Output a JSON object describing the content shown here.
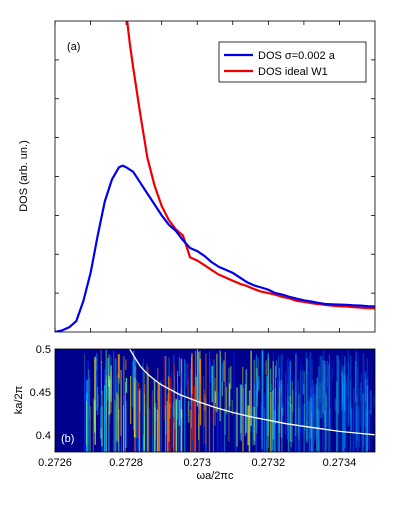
{
  "chart_data": [
    {
      "type": "line",
      "panel_label": "(a)",
      "ylabel": "DOS (arb. un.)",
      "xlim": [
        0.2726,
        0.2735
      ],
      "ylim": [
        0,
        1
      ],
      "y_ticks_labeled": false,
      "legend_position": "top-right",
      "series": [
        {
          "name": "DOS σ=0.002 a",
          "color": "#0000ee",
          "x": [
            0.2726,
            0.27262,
            0.27264,
            0.27266,
            0.27268,
            0.2727,
            0.27272,
            0.27274,
            0.27276,
            0.27278,
            0.27279,
            0.2728,
            0.27282,
            0.27284,
            0.27286,
            0.27288,
            0.2729,
            0.27292,
            0.27294,
            0.27296,
            0.27298,
            0.273,
            0.27302,
            0.27304,
            0.27306,
            0.27308,
            0.2731,
            0.27312,
            0.27314,
            0.27316,
            0.27318,
            0.2732,
            0.27322,
            0.27324,
            0.27326,
            0.27328,
            0.2733,
            0.27332,
            0.27334,
            0.27336,
            0.27338,
            0.2734,
            0.27342,
            0.27344,
            0.27346,
            0.27348,
            0.2735
          ],
          "y": [
            0.0,
            0.005,
            0.015,
            0.035,
            0.1,
            0.19,
            0.31,
            0.42,
            0.49,
            0.53,
            0.535,
            0.53,
            0.515,
            0.48,
            0.445,
            0.41,
            0.375,
            0.345,
            0.325,
            0.295,
            0.27,
            0.26,
            0.245,
            0.225,
            0.21,
            0.2,
            0.19,
            0.175,
            0.16,
            0.15,
            0.143,
            0.136,
            0.125,
            0.12,
            0.113,
            0.107,
            0.102,
            0.098,
            0.094,
            0.09,
            0.089,
            0.088,
            0.087,
            0.086,
            0.085,
            0.083,
            0.082
          ]
        },
        {
          "name": "DOS ideal W1",
          "color": "#ee0000",
          "x": [
            0.272803,
            0.27281,
            0.27282,
            0.27284,
            0.27286,
            0.27288,
            0.2729,
            0.27292,
            0.27294,
            0.27296,
            0.27298,
            0.273,
            0.27302,
            0.27304,
            0.27306,
            0.27308,
            0.2731,
            0.27312,
            0.27314,
            0.27316,
            0.27318,
            0.2732,
            0.27322,
            0.27324,
            0.27326,
            0.27328,
            0.2733,
            0.27332,
            0.27334,
            0.27336,
            0.27338,
            0.2734,
            0.27342,
            0.27344,
            0.27346,
            0.27348,
            0.2735
          ],
          "y": [
            1.0,
            0.93,
            0.85,
            0.7,
            0.56,
            0.47,
            0.405,
            0.36,
            0.33,
            0.31,
            0.24,
            0.23,
            0.215,
            0.2,
            0.185,
            0.175,
            0.165,
            0.155,
            0.148,
            0.138,
            0.13,
            0.125,
            0.12,
            0.113,
            0.108,
            0.1,
            0.097,
            0.093,
            0.09,
            0.087,
            0.085,
            0.083,
            0.082,
            0.08,
            0.078,
            0.077,
            0.076
          ]
        }
      ]
    },
    {
      "type": "heatmap",
      "panel_label": "(b)",
      "xlabel": "ωa/2πc",
      "ylabel": "ka/2π",
      "xlim": [
        0.2726,
        0.2735
      ],
      "ylim": [
        0.38,
        0.5
      ],
      "x_ticks": [
        "0.2726",
        "0.2728",
        "0.273",
        "0.2732",
        "0.2734"
      ],
      "x_tick_values": [
        0.2726,
        0.2728,
        0.273,
        0.2732,
        0.2734
      ],
      "y_ticks": [
        "0.4",
        "0.45",
        "0.5"
      ],
      "y_tick_values": [
        0.4,
        0.45,
        0.5
      ],
      "background_color": "#00008f",
      "band_curve": {
        "color": "#ffffff",
        "x": [
          0.27281,
          0.27282,
          0.27284,
          0.27286,
          0.27288,
          0.2729,
          0.27295,
          0.273,
          0.27305,
          0.2731,
          0.27315,
          0.2732,
          0.27325,
          0.2733,
          0.27335,
          0.2734,
          0.27345,
          0.2735
        ],
        "y": [
          0.5,
          0.493,
          0.48,
          0.471,
          0.464,
          0.458,
          0.447,
          0.439,
          0.432,
          0.426,
          0.421,
          0.417,
          0.413,
          0.41,
          0.407,
          0.404,
          0.402,
          0.4
        ]
      }
    }
  ]
}
